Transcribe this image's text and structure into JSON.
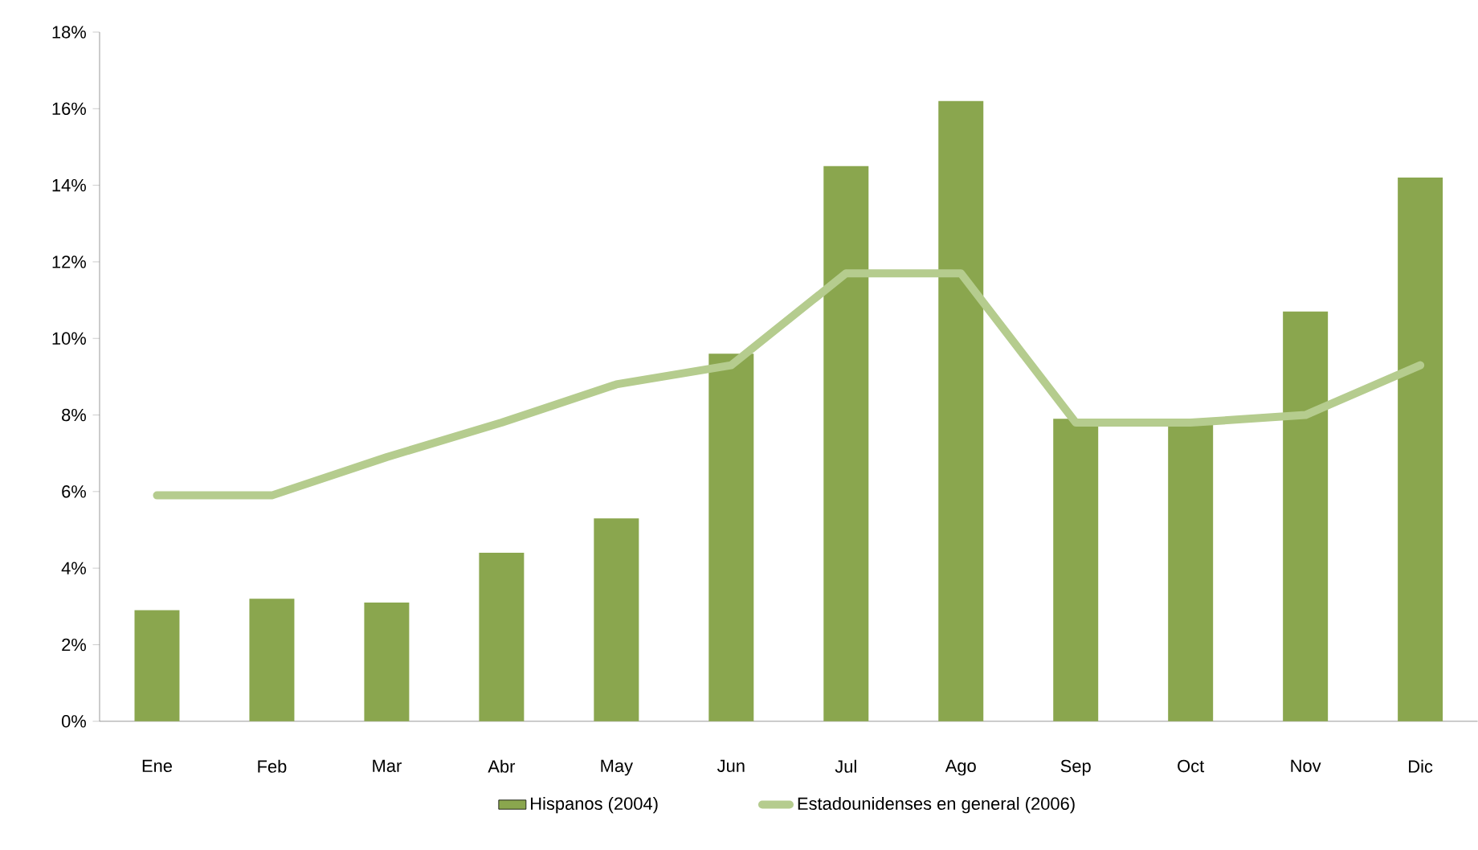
{
  "chart_data": {
    "type": "bar",
    "categories": [
      "Ene",
      "Feb",
      "Mar",
      "Abr",
      "May",
      "Jun",
      "Jul",
      "Ago",
      "Sep",
      "Oct",
      "Nov",
      "Dic"
    ],
    "series": [
      {
        "name": "Hispanos (2004)",
        "color": "#8aa64e",
        "values": [
          2.9,
          3.2,
          3.1,
          4.4,
          5.3,
          9.6,
          14.5,
          16.2,
          7.9,
          7.8,
          10.7,
          14.2
        ]
      },
      {
        "name": "Estadounidenses en general (2006)",
        "type": "line",
        "color": "#b5cc8e",
        "values": [
          5.9,
          5.9,
          6.9,
          7.8,
          8.8,
          9.3,
          11.7,
          11.7,
          7.8,
          7.8,
          8.0,
          9.3
        ]
      }
    ],
    "ylim": [
      0,
      18
    ],
    "yticks": [
      {
        "value": 0,
        "label": "0%"
      },
      {
        "value": 2,
        "label": "2%"
      },
      {
        "value": 4,
        "label": "4%"
      },
      {
        "value": 6,
        "label": "6%"
      },
      {
        "value": 8,
        "label": "8%"
      },
      {
        "value": 10,
        "label": "10%"
      },
      {
        "value": 12,
        "label": "12%"
      },
      {
        "value": 14,
        "label": "14%"
      },
      {
        "value": 16,
        "label": "16%"
      },
      {
        "value": 18,
        "label": "18%"
      }
    ],
    "grid": false,
    "legend": "bottom"
  }
}
